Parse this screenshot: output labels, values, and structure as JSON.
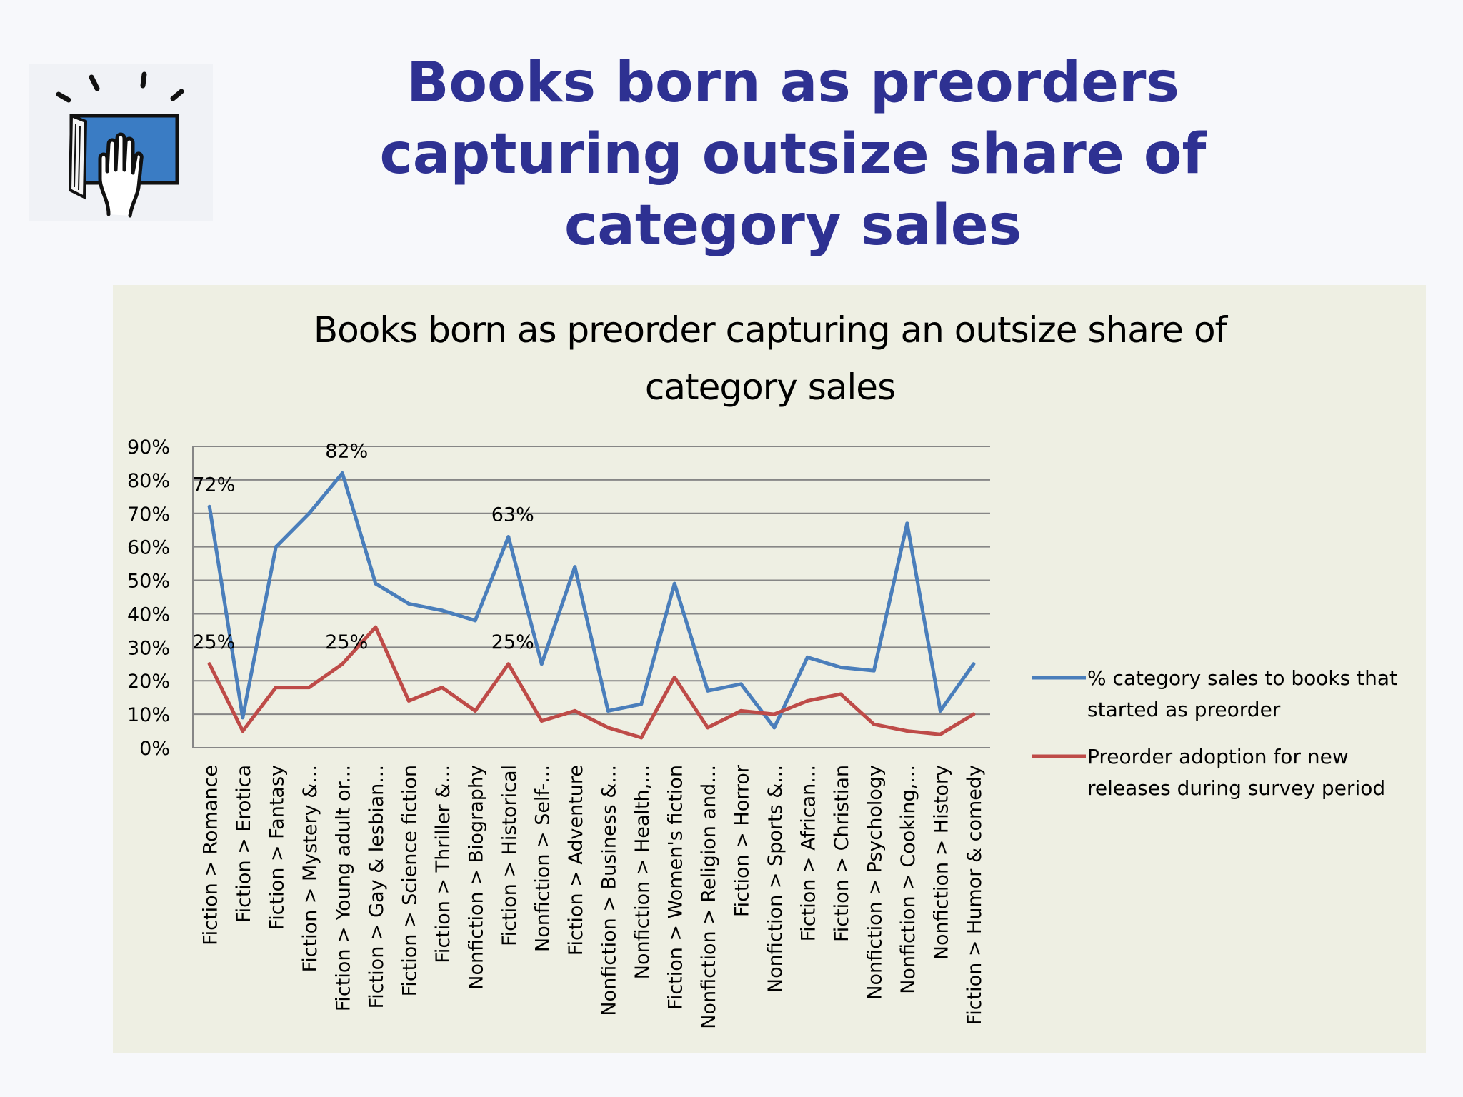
{
  "slide": {
    "title_lines": [
      "Books born as preorders",
      "capturing outsize share of",
      "category sales"
    ],
    "logo_icon": "book-in-hand-icon"
  },
  "colors": {
    "slide_title": "#2e3192",
    "panel_background": "#eeefe3",
    "series_blue": "#4a7ebb",
    "series_red": "#be4b48",
    "gridline": "#868686"
  },
  "chart_data": {
    "type": "line",
    "title_lines": [
      "Books born as preorder capturing an outsize share of",
      "category sales"
    ],
    "xlabel": "",
    "ylabel": "",
    "ylim": [
      0,
      0.9
    ],
    "y_ticks": [
      "0%",
      "10%",
      "20%",
      "30%",
      "40%",
      "50%",
      "60%",
      "70%",
      "80%",
      "90%"
    ],
    "grid": true,
    "legend_position": "right",
    "categories": [
      "Fiction > Romance",
      "Fiction > Erotica",
      "Fiction > Fantasy",
      "Fiction > Mystery &...",
      "Fiction > Young adult or...",
      "Fiction > Gay & lesbian...",
      "Fiction > Science fiction",
      "Fiction > Thriller &...",
      "Nonfiction > Biography",
      "Fiction > Historical",
      "Nonfiction > Self-...",
      "Fiction > Adventure",
      "Nonfiction > Business &...",
      "Nonfiction > Health,...",
      "Fiction > Women's fiction",
      "Nonfiction > Religion and...",
      "Fiction > Horror",
      "Nonfiction > Sports &...",
      "Fiction > African...",
      "Fiction > Christian",
      "Nonfiction > Psychology",
      "Nonfiction > Cooking,...",
      "Nonfiction > History",
      "Fiction > Humor & comedy"
    ],
    "series": [
      {
        "name": "% category sales to books that started as preorder",
        "legend_lines": [
          "% category sales to books that",
          "started as preorder"
        ],
        "color": "#4a7ebb",
        "values": [
          0.72,
          0.09,
          0.6,
          0.7,
          0.82,
          0.49,
          0.43,
          0.41,
          0.38,
          0.63,
          0.25,
          0.54,
          0.11,
          0.13,
          0.49,
          0.17,
          0.19,
          0.06,
          0.27,
          0.24,
          0.23,
          0.67,
          0.11,
          0.25
        ],
        "data_labels": [
          {
            "index": 0,
            "text": "72%"
          },
          {
            "index": 4,
            "text": "82%"
          },
          {
            "index": 9,
            "text": "63%"
          }
        ]
      },
      {
        "name": "Preorder adoption for new releases during survey period",
        "legend_lines": [
          "Preorder adoption for new",
          "releases during survey period"
        ],
        "color": "#be4b48",
        "values": [
          0.25,
          0.05,
          0.18,
          0.18,
          0.25,
          0.36,
          0.14,
          0.18,
          0.11,
          0.25,
          0.08,
          0.11,
          0.06,
          0.03,
          0.21,
          0.06,
          0.11,
          0.1,
          0.14,
          0.16,
          0.07,
          0.05,
          0.04,
          0.1
        ],
        "data_labels": [
          {
            "index": 0,
            "text": "25%"
          },
          {
            "index": 4,
            "text": "25%"
          },
          {
            "index": 9,
            "text": "25%"
          }
        ]
      }
    ]
  }
}
